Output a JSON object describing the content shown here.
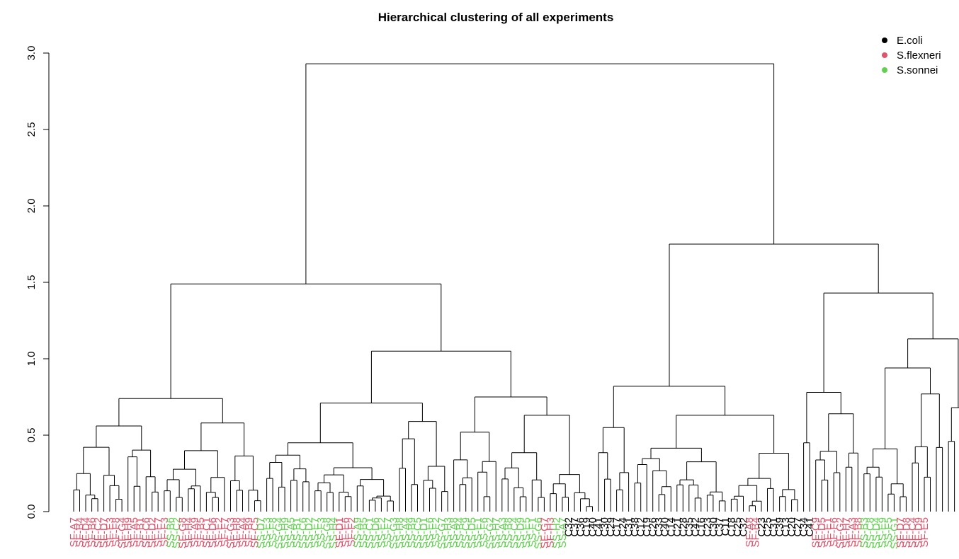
{
  "chart_data": {
    "type": "dendrogram",
    "title": "Hierarchical clustering of all experiments",
    "xlabel": "",
    "ylabel": "",
    "ylim": [
      0,
      3.0
    ],
    "yticks": [
      "0.0",
      "0.5",
      "1.0",
      "1.5",
      "2.0",
      "2.5",
      "3.0"
    ],
    "grid": false,
    "legend_position": "top-right",
    "colors": {
      "E.coli": "#000000",
      "S.flexneri": "#DF536B",
      "S.sonnei": "#61D04F"
    },
    "legend": [
      {
        "label": "E.coli",
        "color": "#000000"
      },
      {
        "label": "S.flexneri",
        "color": "#DF536B"
      },
      {
        "label": "S.sonnei",
        "color": "#61D04F"
      }
    ],
    "leaf_groups": [
      {
        "group": "S.flexneri",
        "count": 16,
        "labels": [
          "SF-A7",
          "SF-B4",
          "SF-D4"
        ]
      },
      {
        "group": "S.sonnei",
        "count": 2
      },
      {
        "group": "S.flexneri",
        "count": 13
      },
      {
        "group": "S.sonnei",
        "count": 13
      },
      {
        "group": "S.flexneri",
        "count": 3
      },
      {
        "group": "S.sonnei",
        "count": 31
      },
      {
        "group": "S.flexneri",
        "count": 2
      },
      {
        "group": "S.sonnei",
        "count": 2
      },
      {
        "group": "E.coli",
        "count": 30,
        "labels": [
          "C32",
          "C37",
          "C36",
          "C19",
          "C40",
          "C41",
          "C30",
          "C29"
        ]
      },
      {
        "group": "S.flexneri",
        "count": 2
      },
      {
        "group": "E.coli",
        "count": 9,
        "labels": [
          "C23",
          "C25",
          "C31"
        ]
      },
      {
        "group": "S.flexneri",
        "count": 8
      },
      {
        "group": "S.sonnei",
        "count": 6
      },
      {
        "group": "S.flexneri",
        "count": 5,
        "labels": [
          "SF-D7",
          "SF-D8"
        ]
      }
    ],
    "merges": [
      {
        "name": "root",
        "height": 2.93
      },
      {
        "name": "left-main",
        "height": 1.49
      },
      {
        "name": "right-main",
        "height": 1.75
      },
      {
        "name": "left-sub-a",
        "height": 0.74
      },
      {
        "name": "left-sub-b",
        "height": 1.05
      },
      {
        "name": "left-sub-b1",
        "height": 0.71
      },
      {
        "name": "left-sub-b2",
        "height": 0.75
      },
      {
        "name": "ecoli-cluster",
        "height": 0.82
      },
      {
        "name": "right-sub",
        "height": 1.43
      },
      {
        "name": "right-sub-a",
        "height": 0.78
      },
      {
        "name": "right-sub-b",
        "height": 1.13
      },
      {
        "name": "right-sub-b1",
        "height": 0.94
      }
    ]
  }
}
